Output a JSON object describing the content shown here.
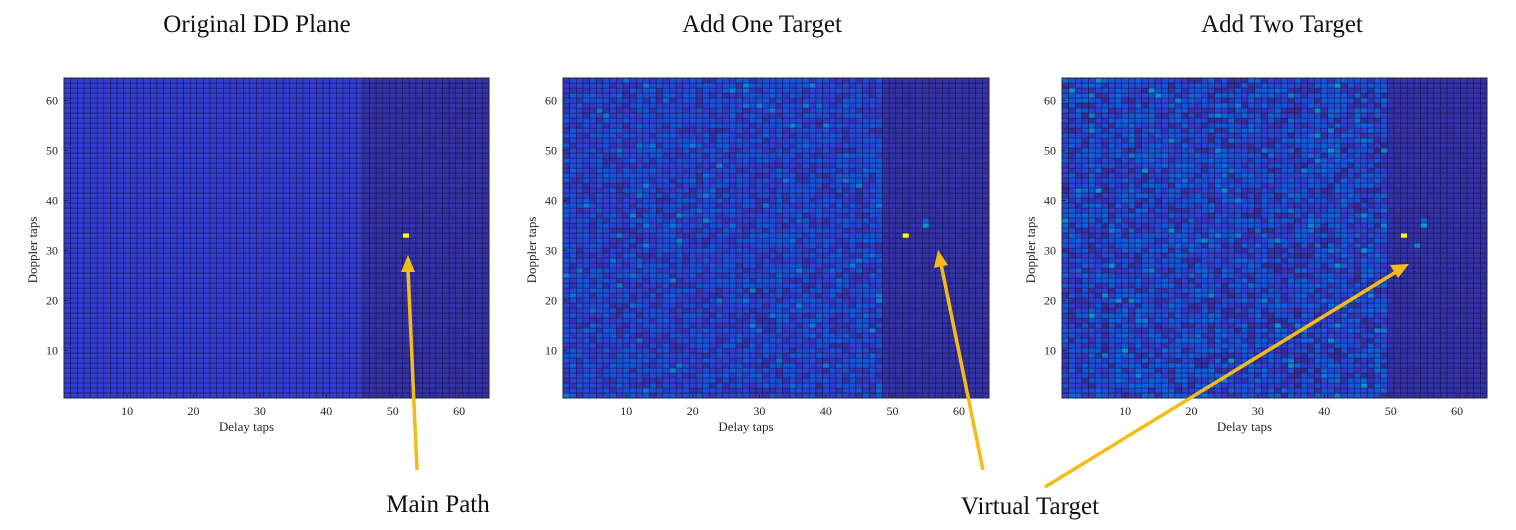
{
  "figure": {
    "callout_main_path": "Main Path",
    "callout_virtual_target": "Virtual Target",
    "arrow_color": "#F5BC18"
  },
  "chart_data": [
    {
      "type": "heatmap",
      "title": "Original DD Plane",
      "xlabel": "Delay taps",
      "ylabel": "Doppler taps",
      "xlim": [
        0.5,
        64.5
      ],
      "ylim": [
        0.5,
        64.5
      ],
      "xticks": [
        "10",
        "20",
        "30",
        "40",
        "50",
        "60"
      ],
      "yticks": [
        "10",
        "20",
        "30",
        "40",
        "50",
        "60"
      ],
      "xtick_values": [
        10,
        20,
        30,
        40,
        50,
        60
      ],
      "ytick_values": [
        10,
        20,
        30,
        40,
        50,
        60
      ],
      "grid": "cell edges",
      "colormap": "parula",
      "background_level": 0.12,
      "noise_level": 0.0,
      "dark_region_delay_from": 46,
      "dark_region_level": 0.04,
      "peaks": [
        {
          "delay": 52,
          "doppler": 33,
          "level": 1.0
        }
      ]
    },
    {
      "type": "heatmap",
      "title": "Add One Target",
      "xlabel": "Delay taps",
      "ylabel": "Doppler taps",
      "xlim": [
        0.5,
        64.5
      ],
      "ylim": [
        0.5,
        64.5
      ],
      "xticks": [
        "10",
        "20",
        "30",
        "40",
        "50",
        "60"
      ],
      "yticks": [
        "10",
        "20",
        "30",
        "40",
        "50",
        "60"
      ],
      "xtick_values": [
        10,
        20,
        30,
        40,
        50,
        60
      ],
      "ytick_values": [
        10,
        20,
        30,
        40,
        50,
        60
      ],
      "grid": "cell edges",
      "colormap": "parula",
      "background_level": 0.12,
      "noise_level": 0.1,
      "dark_region_delay_from": 49,
      "dark_region_level": 0.04,
      "peaks": [
        {
          "delay": 52,
          "doppler": 33,
          "level": 1.0
        },
        {
          "delay": 55,
          "doppler": 35,
          "level": 0.55
        },
        {
          "delay": 55,
          "doppler": 36,
          "level": 0.3
        }
      ]
    },
    {
      "type": "heatmap",
      "title": "Add Two Target",
      "xlabel": "Delay taps",
      "ylabel": "Doppler taps",
      "xlim": [
        0.5,
        64.5
      ],
      "ylim": [
        0.5,
        64.5
      ],
      "xticks": [
        "10",
        "20",
        "30",
        "40",
        "50",
        "60"
      ],
      "yticks": [
        "10",
        "20",
        "30",
        "40",
        "50",
        "60"
      ],
      "xtick_values": [
        10,
        20,
        30,
        40,
        50,
        60
      ],
      "ytick_values": [
        10,
        20,
        30,
        40,
        50,
        60
      ],
      "grid": "cell edges",
      "colormap": "parula",
      "background_level": 0.12,
      "noise_level": 0.13,
      "dark_region_delay_from": 50,
      "dark_region_level": 0.04,
      "peaks": [
        {
          "delay": 52,
          "doppler": 33,
          "level": 1.0
        },
        {
          "delay": 55,
          "doppler": 35,
          "level": 0.55
        },
        {
          "delay": 55,
          "doppler": 36,
          "level": 0.3
        },
        {
          "delay": 54,
          "doppler": 31,
          "level": 0.45
        }
      ]
    }
  ]
}
